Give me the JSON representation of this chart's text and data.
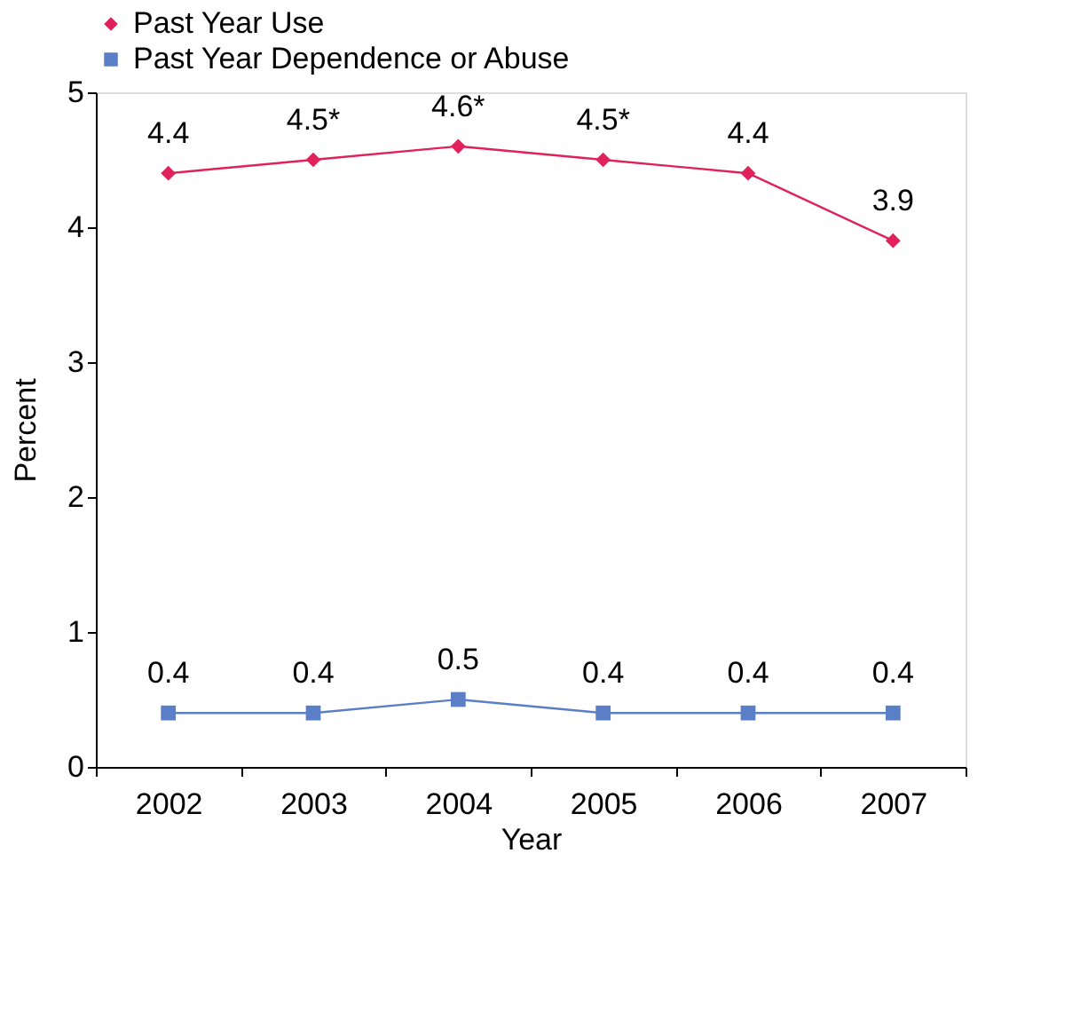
{
  "chart_data": {
    "type": "line",
    "xlabel": "Year",
    "ylabel": "Percent",
    "categories": [
      "2002",
      "2003",
      "2004",
      "2005",
      "2006",
      "2007"
    ],
    "series": [
      {
        "name": "Past Year Use",
        "color": "#e0215a",
        "marker": "diamond",
        "values": [
          4.4,
          4.5,
          4.6,
          4.5,
          4.4,
          3.9
        ],
        "value_labels": [
          "4.4",
          "4.5*",
          "4.6*",
          "4.5*",
          "4.4",
          "3.9"
        ]
      },
      {
        "name": "Past Year Dependence or Abuse",
        "color": "#5b7fc7",
        "marker": "square",
        "values": [
          0.4,
          0.4,
          0.5,
          0.4,
          0.4,
          0.4
        ],
        "value_labels": [
          "0.4",
          "0.4",
          "0.5",
          "0.4",
          "0.4",
          "0.4"
        ]
      }
    ],
    "ylim": [
      0,
      5
    ],
    "yticks": [
      0,
      1,
      2,
      3,
      4,
      5
    ],
    "grid": false,
    "legend": "top",
    "line_style": "solid"
  }
}
